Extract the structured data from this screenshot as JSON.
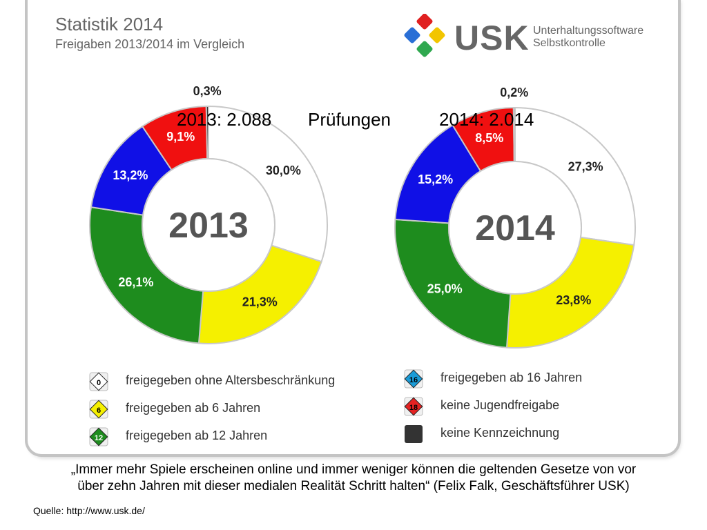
{
  "header": {
    "title": "Statistik 2014",
    "subtitle": "Freigaben 2013/2014 im Vergleich"
  },
  "logo": {
    "name": "USK",
    "line1": "Unterhaltungssoftware",
    "line2": "Selbstkontrolle",
    "colors": [
      "#e02020",
      "#2a6fd6",
      "#2fa84f",
      "#f2c500"
    ]
  },
  "overlay": {
    "left": "2013: 2.088",
    "middle": "Prüfungen",
    "right": "2014: 2.014"
  },
  "chart_data": [
    {
      "type": "pie",
      "variant": "donut",
      "center_label": "2013",
      "categories": [
        "freigegeben ohne Altersbeschränkung",
        "freigegeben ab 6 Jahren",
        "freigegeben ab 12 Jahren",
        "freigegeben ab 16 Jahren",
        "keine Jugendfreigabe",
        "keine Kennzeichnung"
      ],
      "values": [
        30.0,
        21.3,
        26.1,
        13.2,
        9.1,
        0.3
      ],
      "labels": [
        "30,0%",
        "21,3%",
        "26,1%",
        "13,2%",
        "9,1%",
        "0,3%"
      ],
      "colors": [
        "#ffffff",
        "#f5f000",
        "#1e8c1e",
        "#1010e6",
        "#f01010",
        "#333333"
      ]
    },
    {
      "type": "pie",
      "variant": "donut",
      "center_label": "2014",
      "categories": [
        "freigegeben ohne Altersbeschränkung",
        "freigegeben ab 6 Jahren",
        "freigegeben ab 12 Jahren",
        "freigegeben ab 16 Jahren",
        "keine Jugendfreigabe",
        "keine Kennzeichnung"
      ],
      "values": [
        27.3,
        23.8,
        25.0,
        15.2,
        8.5,
        0.2
      ],
      "labels": [
        "27,3%",
        "23,8%",
        "25,0%",
        "15,2%",
        "8,5%",
        "0,2%"
      ],
      "colors": [
        "#ffffff",
        "#f5f000",
        "#1e8c1e",
        "#1010e6",
        "#f01010",
        "#333333"
      ]
    }
  ],
  "legend": {
    "left": [
      {
        "badge": "0",
        "label": "freigegeben ohne Altersbeschränkung",
        "color": "#ffffff"
      },
      {
        "badge": "6",
        "label": "freigegeben ab 6 Jahren",
        "color": "#f5f000"
      },
      {
        "badge": "12",
        "label": "freigegeben ab 12 Jahren",
        "color": "#1e8c1e"
      }
    ],
    "right": [
      {
        "badge": "16",
        "label": "freigegeben ab 16 Jahren",
        "color": "#1a9bd7"
      },
      {
        "badge": "18",
        "label": "keine Jugendfreigabe",
        "color": "#e52222"
      },
      {
        "badge": "",
        "label": "keine Kennzeichnung",
        "color": "#333333"
      }
    ]
  },
  "quote": {
    "line1": "„Immer mehr Spiele erscheinen online und immer weniger können die geltenden Gesetze von vor",
    "line2": "über zehn Jahren mit dieser medialen Realität Schritt halten“ (Felix Falk, Geschäftsführer USK)"
  },
  "source": "Quelle: http://www.usk.de/"
}
